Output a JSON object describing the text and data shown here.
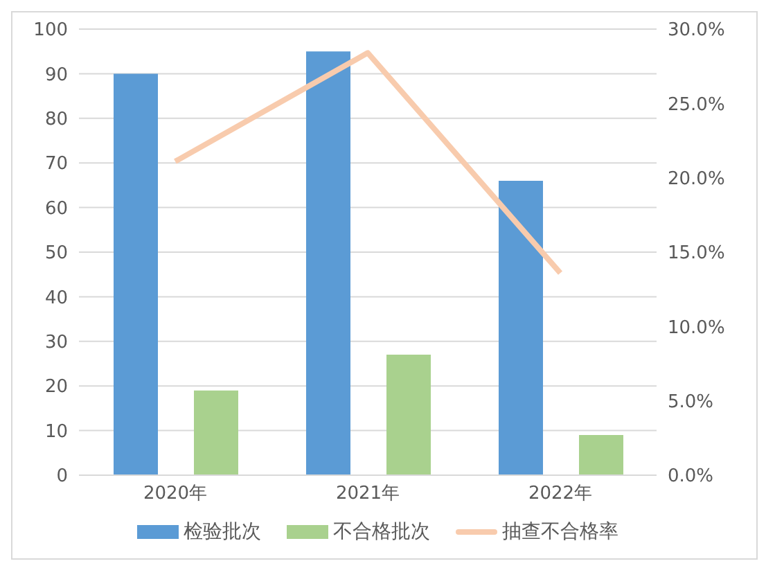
{
  "chart_data": {
    "type": "bar",
    "categories": [
      "2020年",
      "2021年",
      "2022年"
    ],
    "series": [
      {
        "name": "检验批次",
        "color": "#5b9bd5",
        "values": [
          90,
          95,
          66
        ]
      },
      {
        "name": "不合格批次",
        "color": "#a9d18e",
        "values": [
          19,
          27,
          9
        ]
      },
      {
        "name": "抽查不合格率",
        "type": "line",
        "axis": "y2",
        "color": "#f8cbad",
        "values": [
          21.1,
          28.4,
          13.6
        ]
      }
    ],
    "ylim": [
      0,
      100
    ],
    "yticks": [
      0,
      10,
      20,
      30,
      40,
      50,
      60,
      70,
      80,
      90,
      100
    ],
    "y2lim": [
      0,
      30
    ],
    "y2ticks": [
      {
        "value": 0,
        "label": "0.0%"
      },
      {
        "value": 5,
        "label": "5.0%"
      },
      {
        "value": 10,
        "label": "10.0%"
      },
      {
        "value": 15,
        "label": "15.0%"
      },
      {
        "value": 20,
        "label": "20.0%"
      },
      {
        "value": 25,
        "label": "25.0%"
      },
      {
        "value": 30,
        "label": "30.0%"
      }
    ],
    "grid": "y",
    "legend": "bottom",
    "marker": "none"
  }
}
